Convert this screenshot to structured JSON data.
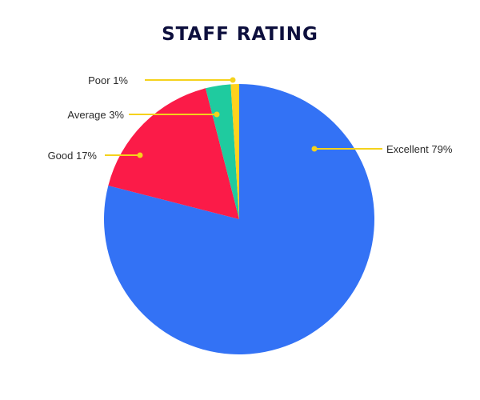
{
  "chart_data": {
    "type": "pie",
    "title": "STAFF RATING",
    "slices": [
      {
        "label": "Excellent",
        "value": 79,
        "display": "Excellent 79%",
        "color": "#3372f5"
      },
      {
        "label": "Good",
        "value": 17,
        "display": "Good 17%",
        "color": "#fb1b48"
      },
      {
        "label": "Average",
        "value": 3,
        "display": "Average 3%",
        "color": "#1fcb9f"
      },
      {
        "label": "Poor",
        "value": 1,
        "display": "Poor 1%",
        "color": "#ffd21e"
      }
    ],
    "start_angle_deg": 0,
    "direction": "clockwise",
    "legend": "none",
    "callout_color": "#f5d21c"
  }
}
